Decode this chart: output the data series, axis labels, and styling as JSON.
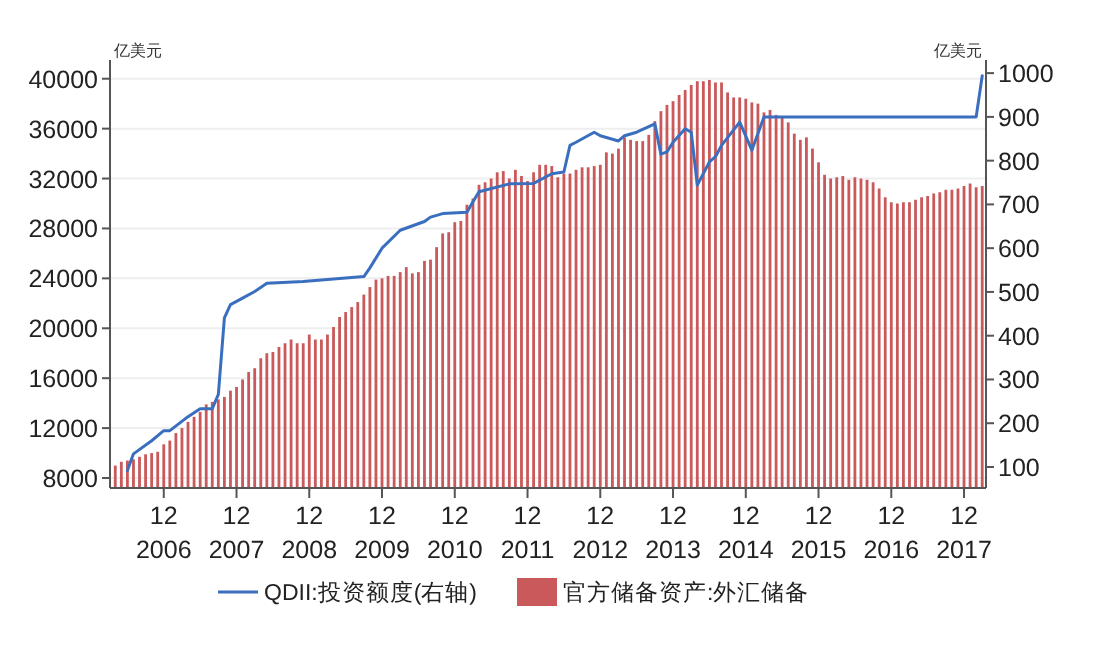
{
  "chart_data": {
    "type": "bar",
    "ylabel": "亿美元",
    "y2label": "亿美元",
    "legend": "bottom",
    "grid": "y",
    "x": [
      "2006-04",
      "2006-05",
      "2006-06",
      "2006-07",
      "2006-08",
      "2006-09",
      "2006-10",
      "2006-11",
      "2006-12",
      "2007-01",
      "2007-02",
      "2007-03",
      "2007-04",
      "2007-05",
      "2007-06",
      "2007-07",
      "2007-08",
      "2007-09",
      "2007-10",
      "2007-11",
      "2007-12",
      "2008-01",
      "2008-02",
      "2008-03",
      "2008-04",
      "2008-05",
      "2008-06",
      "2008-07",
      "2008-08",
      "2008-09",
      "2008-10",
      "2008-11",
      "2008-12",
      "2009-01",
      "2009-02",
      "2009-03",
      "2009-04",
      "2009-05",
      "2009-06",
      "2009-07",
      "2009-08",
      "2009-09",
      "2009-10",
      "2009-11",
      "2009-12",
      "2010-01",
      "2010-02",
      "2010-03",
      "2010-04",
      "2010-05",
      "2010-06",
      "2010-07",
      "2010-08",
      "2010-09",
      "2010-10",
      "2010-11",
      "2010-12",
      "2011-01",
      "2011-02",
      "2011-03",
      "2011-04",
      "2011-05",
      "2011-06",
      "2011-07",
      "2011-08",
      "2011-09",
      "2011-10",
      "2011-11",
      "2011-12",
      "2012-01",
      "2012-02",
      "2012-03",
      "2012-04",
      "2012-05",
      "2012-06",
      "2012-07",
      "2012-08",
      "2012-09",
      "2012-10",
      "2012-11",
      "2012-12",
      "2013-01",
      "2013-02",
      "2013-03",
      "2013-04",
      "2013-05",
      "2013-06",
      "2013-07",
      "2013-08",
      "2013-09",
      "2013-10",
      "2013-11",
      "2013-12",
      "2014-01",
      "2014-02",
      "2014-03",
      "2014-04",
      "2014-05",
      "2014-06",
      "2014-07",
      "2014-08",
      "2014-09",
      "2014-10",
      "2014-11",
      "2014-12",
      "2015-01",
      "2015-02",
      "2015-03",
      "2015-04",
      "2015-05",
      "2015-06",
      "2015-07",
      "2015-08",
      "2015-09",
      "2015-10",
      "2015-11",
      "2015-12",
      "2016-01",
      "2016-02",
      "2016-03",
      "2016-04",
      "2016-05",
      "2016-06",
      "2016-07",
      "2016-08",
      "2016-09",
      "2016-10",
      "2016-11",
      "2016-12",
      "2017-01",
      "2017-02",
      "2017-03",
      "2017-04",
      "2017-05",
      "2017-06",
      "2017-07",
      "2017-08",
      "2017-09",
      "2017-10",
      "2017-11",
      "2017-12",
      "2018-01",
      "2018-02",
      "2018-03"
    ],
    "xlim": [
      "2006-03-05",
      "2018-03-20"
    ],
    "xticks": [
      {
        "value": "2006-12",
        "label": "12\n2006"
      },
      {
        "value": "2007-12",
        "label": "12\n2007"
      },
      {
        "value": "2008-12",
        "label": "12\n2008"
      },
      {
        "value": "2009-12",
        "label": "12\n2009"
      },
      {
        "value": "2010-12",
        "label": "12\n2010"
      },
      {
        "value": "2011-12",
        "label": "12\n2011"
      },
      {
        "value": "2012-12",
        "label": "12\n2012"
      },
      {
        "value": "2013-12",
        "label": "12\n2013"
      },
      {
        "value": "2014-12",
        "label": "12\n2014"
      },
      {
        "value": "2015-12",
        "label": "12\n2015"
      },
      {
        "value": "2016-12",
        "label": "12\n2016"
      },
      {
        "value": "2017-12",
        "label": "12\n2017"
      }
    ],
    "ylim": [
      7200,
      41500
    ],
    "yticks": [
      8000,
      12000,
      16000,
      20000,
      24000,
      28000,
      32000,
      36000,
      40000
    ],
    "y2lim": [
      52,
      1030
    ],
    "y2ticks": [
      100,
      200,
      300,
      400,
      500,
      600,
      700,
      800,
      900,
      1000
    ],
    "series": [
      {
        "name": "QDII:投资额度(右轴)",
        "type": "line",
        "axis": "y2",
        "color": "#3a6fbf",
        "x": [
          "2006-06",
          "2006-07",
          "2006-10",
          "2006-12",
          "2007-01",
          "2007-04",
          "2007-06",
          "2007-08",
          "2007-09",
          "2007-10",
          "2007-11",
          "2008-01",
          "2008-03",
          "2008-05",
          "2008-11",
          "2009-09",
          "2009-10",
          "2009-12",
          "2010-03",
          "2010-07",
          "2010-08",
          "2010-10",
          "2011-02",
          "2011-03",
          "2011-04",
          "2011-09",
          "2012-01",
          "2012-04",
          "2012-06",
          "2012-07",
          "2012-08",
          "2012-11",
          "2012-12",
          "2013-03",
          "2013-04",
          "2013-06",
          "2013-09",
          "2013-10",
          "2013-11",
          "2013-12",
          "2014-02",
          "2014-03",
          "2014-04",
          "2014-06",
          "2014-07",
          "2014-08",
          "2014-11",
          "2015-01",
          "2015-03",
          "2018-02",
          "2018-03"
        ],
        "values": [
          92,
          130,
          160,
          183,
          183,
          215,
          233,
          233,
          266,
          441,
          471,
          486,
          501,
          520,
          524,
          535,
          555,
          600,
          641,
          661,
          671,
          679,
          682,
          706,
          729,
          747,
          748,
          770,
          774,
          835,
          842,
          865,
          857,
          845,
          857,
          865,
          884,
          815,
          820,
          842,
          873,
          865,
          744,
          797,
          809,
          835,
          888,
          824,
          900,
          900,
          994
        ]
      },
      {
        "name": "官方储备资产:外汇储备",
        "color": "#c9595a",
        "values": [
          9000,
          9300,
          9400,
          9500,
          9700,
          9900,
          10000,
          10100,
          10700,
          11000,
          11600,
          12000,
          12500,
          12900,
          13300,
          13900,
          14100,
          14300,
          14500,
          15000,
          15300,
          15900,
          16500,
          16800,
          17600,
          18000,
          18100,
          18500,
          18800,
          19100,
          18800,
          18800,
          19500,
          19100,
          19100,
          19500,
          20100,
          20900,
          21300,
          21700,
          22100,
          22700,
          23300,
          23900,
          24000,
          24200,
          24200,
          24500,
          24900,
          24400,
          24500,
          25400,
          25500,
          26500,
          27600,
          27700,
          28500,
          28600,
          29900,
          30400,
          31500,
          31700,
          32000,
          32500,
          32600,
          32000,
          32700,
          32200,
          31800,
          32500,
          33100,
          33100,
          33000,
          32100,
          32400,
          32400,
          32700,
          32900,
          32900,
          33000,
          33100,
          34100,
          34000,
          34400,
          35300,
          35100,
          35000,
          35000,
          35500,
          36600,
          37400,
          37900,
          38200,
          38700,
          39100,
          39500,
          39800,
          39800,
          39900,
          39700,
          39700,
          38900,
          38500,
          38500,
          38400,
          38100,
          38000,
          37300,
          37500,
          37100,
          36900,
          36500,
          35600,
          35100,
          35300,
          34400,
          33300,
          32300,
          32000,
          32100,
          32200,
          31900,
          32100,
          32000,
          31900,
          31700,
          31200,
          30500,
          30100,
          30000,
          30100,
          30100,
          30300,
          30500,
          30600,
          30800,
          30900,
          31100,
          31100,
          31200,
          31400,
          31600,
          31300,
          31400
        ]
      }
    ]
  }
}
